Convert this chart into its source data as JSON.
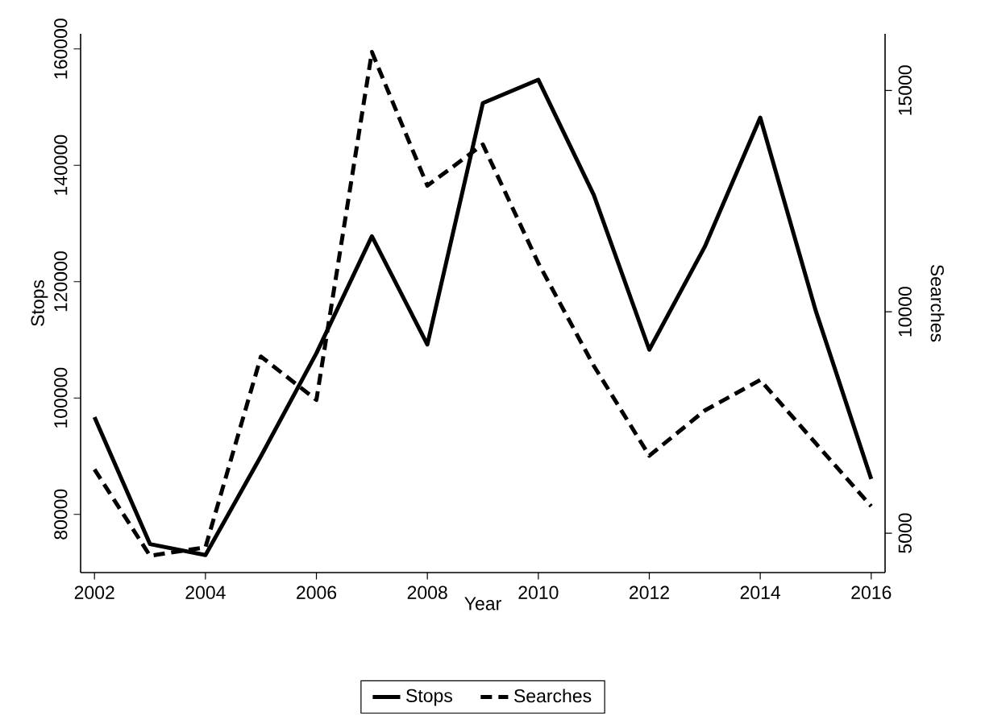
{
  "chart_data": {
    "type": "line",
    "xlabel": "Year",
    "ylabel": "Stops",
    "y2label": "Searches",
    "x": [
      2002,
      2003,
      2004,
      2005,
      2006,
      2007,
      2008,
      2009,
      2010,
      2011,
      2012,
      2013,
      2014,
      2015,
      2016
    ],
    "series": [
      {
        "name": "Stops",
        "color": "#000000",
        "line_style": "solid",
        "values": [
          96700,
          74900,
          73000,
          90000,
          107700,
          127800,
          109200,
          150700,
          154700,
          134900,
          108300,
          126000,
          148200,
          115000,
          86100
        ]
      },
      {
        "name": "Searches",
        "color": "#000000",
        "line_style": "dashed",
        "axis": "y2",
        "values": [
          6440,
          4490,
          4680,
          8990,
          8010,
          15870,
          12850,
          13780,
          11100,
          8780,
          6750,
          7770,
          8460,
          7030,
          5610
        ]
      }
    ],
    "xlim": [
      2001.75,
      2016.25
    ],
    "xticks": [
      2002,
      2004,
      2006,
      2008,
      2010,
      2012,
      2014,
      2016
    ],
    "ylim": [
      70000,
      162600
    ],
    "yticks": [
      80000,
      100000,
      120000,
      140000,
      160000
    ],
    "y2lim": [
      4110,
      16280
    ],
    "y2ticks": [
      5000,
      10000,
      15000
    ],
    "legend": "bottom",
    "grid": false,
    "marker": "none"
  }
}
